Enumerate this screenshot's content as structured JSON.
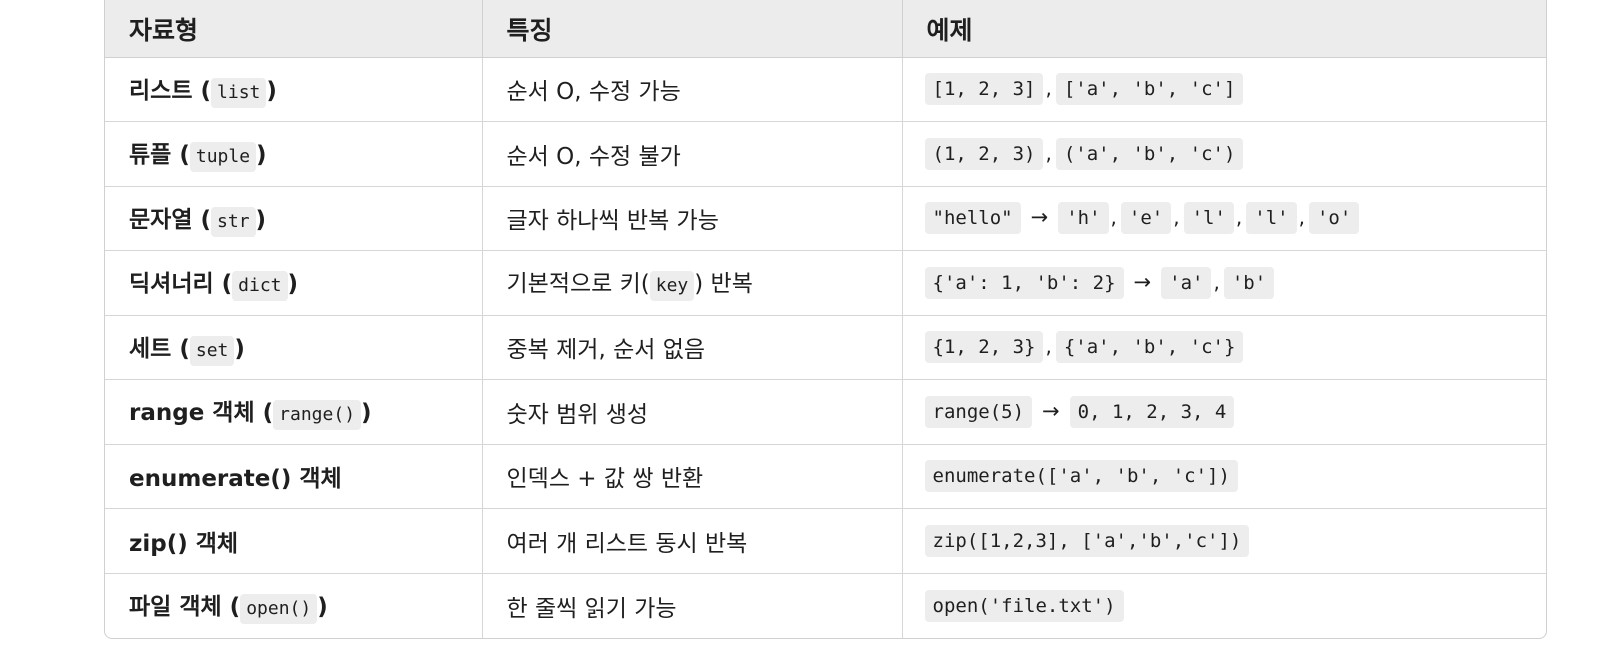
{
  "header": {
    "col_type": "자료형",
    "col_feature": "특징",
    "col_example": "예제"
  },
  "rows": [
    {
      "type_name": "리스트",
      "type_code": "list",
      "feature": "순서 O, 수정 가능",
      "ex1": "[1, 2, 3]",
      "ex2": "['a', 'b', 'c']"
    },
    {
      "type_name": "튜플",
      "type_code": "tuple",
      "feature": "순서 O, 수정 불가",
      "ex1": "(1, 2, 3)",
      "ex2": "('a', 'b', 'c')"
    },
    {
      "type_name": "문자열",
      "type_code": "str",
      "feature": "글자 하나씩 반복 가능",
      "ex1": "\"hello\"",
      "ex2": "'h'",
      "ex3": "'e'",
      "ex4": "'l'",
      "ex5": "'l'",
      "ex6": "'o'"
    },
    {
      "type_name": "딕셔너리",
      "type_code": "dict",
      "feature_before": "기본적으로 키(",
      "feature_code": "key",
      "feature_after": ") 반복",
      "ex1": "{'a': 1, 'b': 2}",
      "ex2": "'a'",
      "ex3": "'b'"
    },
    {
      "type_name": "세트",
      "type_code": "set",
      "feature": "중복 제거, 순서 없음",
      "ex1": "{1, 2, 3}",
      "ex2": "{'a', 'b', 'c'}"
    },
    {
      "type_name": "range 객체",
      "type_code": "range()",
      "feature": "숫자 범위 생성",
      "ex1": "range(5)",
      "ex2": "0, 1, 2, 3, 4"
    },
    {
      "type_name": "enumerate() 객체",
      "feature": "인덱스 + 값 쌍 반환",
      "ex1": "enumerate(['a', 'b', 'c'])"
    },
    {
      "type_name": "zip() 객체",
      "feature": "여러 개 리스트 동시 반복",
      "ex1": "zip([1,2,3], ['a','b','c'])"
    },
    {
      "type_name": "파일 객체",
      "type_code": "open()",
      "feature": "한 줄씩 읽기 가능",
      "ex1": "open('file.txt')"
    }
  ],
  "symbols": {
    "open_paren": "(",
    "close_paren": ")",
    "comma": ",",
    "arrow": "→"
  }
}
